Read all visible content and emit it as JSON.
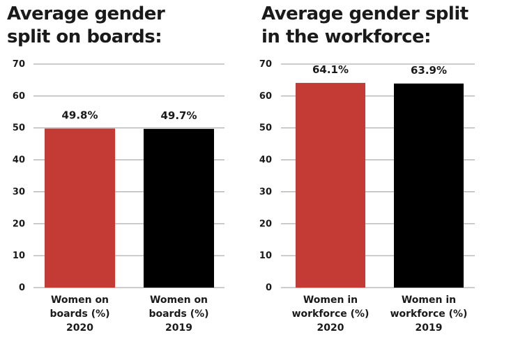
{
  "colors": {
    "red": "#c43a35",
    "black": "#000000",
    "grid": "#9a9a9a"
  },
  "chart_data": [
    {
      "type": "bar",
      "title": [
        "Average gender",
        "split on boards:"
      ],
      "categories": [
        [
          "Women on",
          "boards (%)",
          "2020"
        ],
        [
          "Women on",
          "boards (%)",
          "2019"
        ]
      ],
      "values": [
        49.8,
        49.7
      ],
      "data_labels": [
        "49.8%",
        "49.7%"
      ],
      "bar_colors": [
        "#c43a35",
        "#000000"
      ],
      "yticks": [
        0,
        10,
        20,
        30,
        40,
        50,
        60,
        70
      ],
      "ylim": [
        0,
        70
      ],
      "grid": true
    },
    {
      "type": "bar",
      "title": [
        "Average gender split",
        "in the workforce:"
      ],
      "categories": [
        [
          "Women in",
          "workforce (%)",
          "2020"
        ],
        [
          "Women in",
          "workforce (%)",
          "2019"
        ]
      ],
      "values": [
        64.1,
        63.9
      ],
      "data_labels": [
        "64.1%",
        "63.9%"
      ],
      "bar_colors": [
        "#c43a35",
        "#000000"
      ],
      "yticks": [
        0,
        10,
        20,
        30,
        40,
        50,
        60,
        70
      ],
      "ylim": [
        0,
        70
      ],
      "grid": true
    }
  ]
}
